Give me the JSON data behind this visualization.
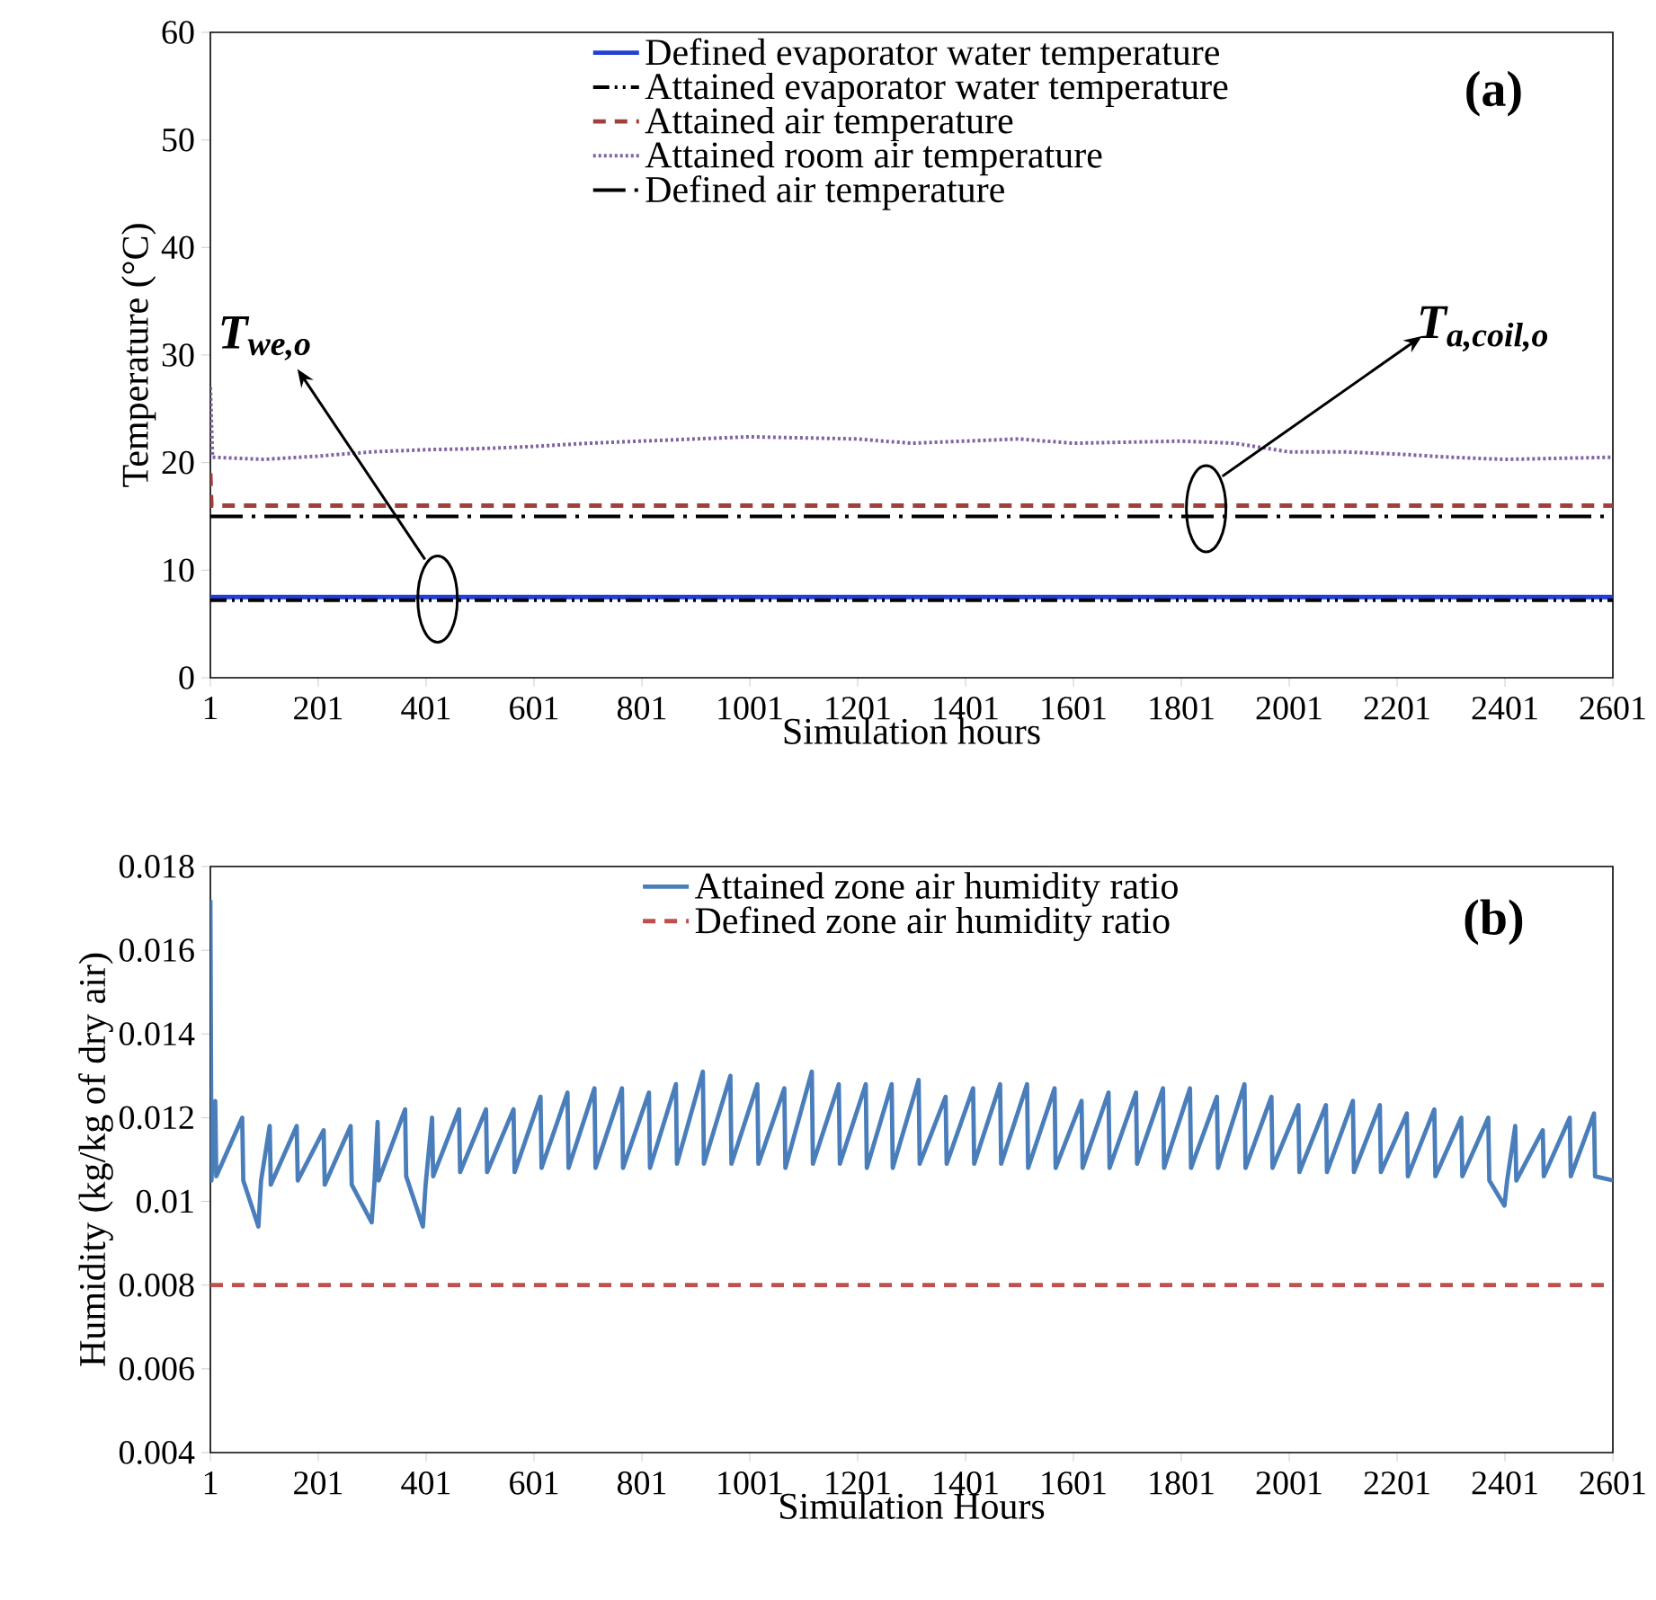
{
  "chart_data": [
    {
      "type": "line",
      "ylabel": "Temperature (°C)",
      "xlabel": "Simulation hours",
      "xlim": [
        1,
        2601
      ],
      "ylim": [
        0,
        60
      ],
      "xticks": [
        1,
        201,
        401,
        601,
        801,
        1001,
        1201,
        1401,
        1601,
        1801,
        2001,
        2201,
        2401,
        2601
      ],
      "yticks": [
        0,
        10,
        20,
        30,
        40,
        50,
        60
      ],
      "legend": "top",
      "grid": false,
      "annotations": [
        "(a)",
        "T$_{we,o}$",
        "T$_{a,coil,o}$"
      ],
      "series": [
        {
          "name": "Defined evaporator water temperature",
          "color": "#1f3fd6",
          "line_style": "solid",
          "x": [
            1,
            2601
          ],
          "values": [
            7.5,
            7.5
          ]
        },
        {
          "name": "Attained evaporator water temperature",
          "color": "#000000",
          "line_style": "dashdotdot",
          "x": [
            1,
            2601
          ],
          "values": [
            7.2,
            7.2
          ]
        },
        {
          "name": "Attained air temperature",
          "color": "#a0403c",
          "line_style": "dashed",
          "x": [
            1,
            3,
            2601
          ],
          "values": [
            19,
            16,
            16
          ]
        },
        {
          "name": "Attained room air temperature",
          "color": "#8064a2",
          "line_style": "dotted",
          "x": [
            1,
            5,
            100,
            200,
            300,
            400,
            500,
            600,
            700,
            800,
            900,
            1000,
            1100,
            1200,
            1300,
            1400,
            1500,
            1600,
            1700,
            1800,
            1900,
            2000,
            2100,
            2200,
            2300,
            2400,
            2500,
            2601
          ],
          "values": [
            27,
            20.5,
            20.3,
            20.6,
            21,
            21.2,
            21.3,
            21.5,
            21.8,
            22,
            22.2,
            22.4,
            22.3,
            22.2,
            21.8,
            22,
            22.2,
            21.8,
            21.9,
            22,
            21.8,
            21,
            21,
            20.8,
            20.5,
            20.3,
            20.4,
            20.5
          ]
        },
        {
          "name": "Defined air temperature",
          "color": "#000000",
          "line_style": "longdashdot",
          "x": [
            1,
            2601
          ],
          "values": [
            15,
            15
          ]
        }
      ]
    },
    {
      "type": "line",
      "ylabel": "Humidity (kg/kg of dry air)",
      "xlabel": "Simulation Hours",
      "xlim": [
        1,
        2601
      ],
      "ylim": [
        0.004,
        0.018
      ],
      "xticks": [
        1,
        201,
        401,
        601,
        801,
        1001,
        1201,
        1401,
        1601,
        1801,
        2001,
        2201,
        2401,
        2601
      ],
      "yticks": [
        0.004,
        0.006,
        0.008,
        0.01,
        0.012,
        0.014,
        0.016,
        0.018
      ],
      "legend": "top",
      "grid": false,
      "annotations": [
        "(b)"
      ],
      "series": [
        {
          "name": "Attained zone air humidity ratio",
          "color": "#4a7ebb",
          "line_style": "solid",
          "x": [
            1,
            3,
            10,
            12,
            60,
            62,
            90,
            95,
            111,
            113,
            161,
            163,
            211,
            213,
            261,
            263,
            300,
            305,
            311,
            313,
            362,
            364,
            395,
            400,
            412,
            414,
            462,
            464,
            512,
            514,
            563,
            565,
            613,
            615,
            663,
            665,
            713,
            715,
            764,
            766,
            814,
            816,
            864,
            866,
            914,
            916,
            965,
            967,
            1015,
            1017,
            1065,
            1067,
            1116,
            1118,
            1166,
            1168,
            1216,
            1218,
            1264,
            1266,
            1314,
            1316,
            1364,
            1366,
            1415,
            1417,
            1465,
            1467,
            1515,
            1517,
            1566,
            1568,
            1616,
            1618,
            1666,
            1668,
            1717,
            1719,
            1767,
            1769,
            1817,
            1819,
            1867,
            1869,
            1918,
            1920,
            1968,
            1970,
            2018,
            2020,
            2069,
            2071,
            2119,
            2121,
            2169,
            2171,
            2219,
            2221,
            2270,
            2272,
            2320,
            2322,
            2370,
            2372,
            2400,
            2405,
            2420,
            2422,
            2471,
            2473,
            2521,
            2523,
            2566,
            2568,
            2601
          ],
          "values": [
            0.0172,
            0.0105,
            0.0124,
            0.0106,
            0.012,
            0.0105,
            0.0094,
            0.0105,
            0.0118,
            0.0104,
            0.0118,
            0.0105,
            0.0117,
            0.0104,
            0.0118,
            0.0104,
            0.0095,
            0.0104,
            0.0119,
            0.0105,
            0.0122,
            0.0106,
            0.0094,
            0.0104,
            0.012,
            0.0106,
            0.0122,
            0.0107,
            0.0122,
            0.0107,
            0.0122,
            0.0107,
            0.0125,
            0.0108,
            0.0126,
            0.0108,
            0.0127,
            0.0108,
            0.0127,
            0.0108,
            0.0126,
            0.0108,
            0.0128,
            0.0109,
            0.0131,
            0.0109,
            0.013,
            0.0109,
            0.0128,
            0.0109,
            0.0127,
            0.0108,
            0.0131,
            0.0109,
            0.0128,
            0.0109,
            0.0128,
            0.0108,
            0.0128,
            0.0108,
            0.0129,
            0.0109,
            0.0125,
            0.0109,
            0.0127,
            0.0109,
            0.0128,
            0.0109,
            0.0128,
            0.0108,
            0.0127,
            0.0108,
            0.0124,
            0.0108,
            0.0126,
            0.0108,
            0.0126,
            0.0109,
            0.0127,
            0.0108,
            0.0127,
            0.0108,
            0.0125,
            0.0108,
            0.0128,
            0.0108,
            0.0125,
            0.0108,
            0.0123,
            0.0107,
            0.0123,
            0.0107,
            0.0124,
            0.0107,
            0.0123,
            0.0107,
            0.0121,
            0.0106,
            0.0122,
            0.0106,
            0.012,
            0.0106,
            0.012,
            0.0105,
            0.0099,
            0.0105,
            0.0118,
            0.0105,
            0.0117,
            0.0106,
            0.012,
            0.0106,
            0.0121,
            0.0106,
            0.0105
          ]
        },
        {
          "name": "Defined zone air humidity ratio",
          "color": "#c0504d",
          "line_style": "dashed",
          "x": [
            1,
            2601
          ],
          "values": [
            0.008,
            0.008
          ]
        }
      ]
    }
  ]
}
